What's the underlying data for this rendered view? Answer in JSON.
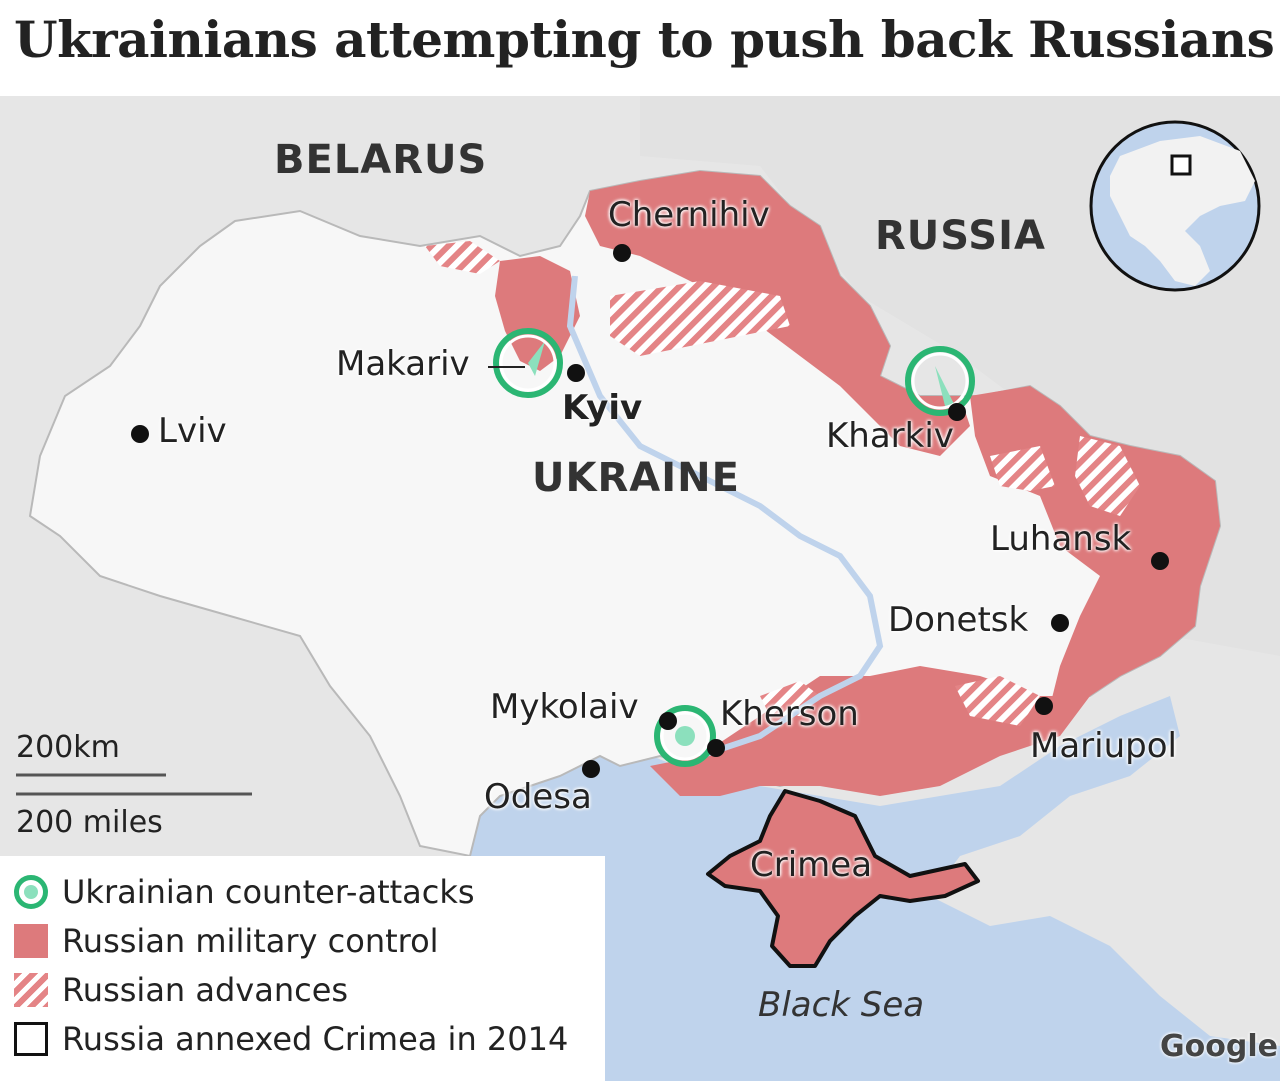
{
  "title": "Ukrainians attempting to push back Russians",
  "countries": {
    "belarus": "BELARUS",
    "russia": "RUSSIA",
    "ukraine": "UKRAINE"
  },
  "cities": {
    "chernihiv": "Chernihiv",
    "makariv": "Makariv",
    "kyiv": "Kyiv",
    "kharkiv": "Kharkiv",
    "lviv": "Lviv",
    "luhansk": "Luhansk",
    "donetsk": "Donetsk",
    "mykolaiv": "Mykolaiv",
    "kherson": "Kherson",
    "mariupol": "Mariupol",
    "odesa": "Odesa",
    "crimea": "Crimea"
  },
  "sea": "Black Sea",
  "scale": {
    "km": "200km",
    "miles": "200 miles"
  },
  "credit": "Google",
  "legend": {
    "counter_attacks": "Ukrainian counter-attacks",
    "military_control": "Russian military control",
    "advances": "Russian advances",
    "annexed": "Russia annexed Crimea in 2014"
  },
  "colors": {
    "russian_control": "#dd7a7c",
    "russian_advance_stripe": "#e48486",
    "counter_attack_ring": "#2bb673",
    "counter_attack_fill": "#8ce0bd",
    "sea": "#bfd3ec",
    "foreign_land": "#e6e6e6",
    "ukraine_land": "#f7f7f7"
  }
}
